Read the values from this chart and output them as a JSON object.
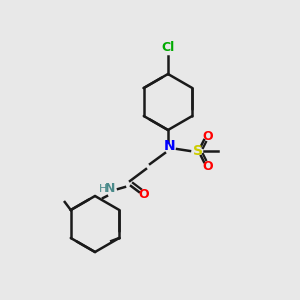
{
  "bg_color": "#e8e8e8",
  "bond_color": "#1a1a1a",
  "bond_width": 1.8,
  "atom_colors": {
    "N": "#0000ff",
    "O": "#ff0000",
    "S": "#cccc00",
    "Cl": "#00aa00",
    "C": "#1a1a1a",
    "H": "#4a8a8a"
  },
  "font_size": 9,
  "font_size_small": 8
}
